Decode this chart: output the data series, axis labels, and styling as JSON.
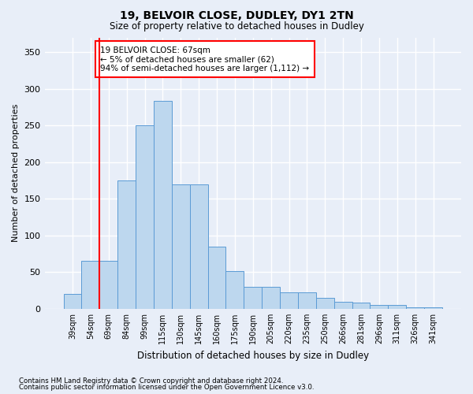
{
  "title1": "19, BELVOIR CLOSE, DUDLEY, DY1 2TN",
  "title2": "Size of property relative to detached houses in Dudley",
  "xlabel": "Distribution of detached houses by size in Dudley",
  "ylabel": "Number of detached properties",
  "categories": [
    "39sqm",
    "54sqm",
    "69sqm",
    "84sqm",
    "99sqm",
    "115sqm",
    "130sqm",
    "145sqm",
    "160sqm",
    "175sqm",
    "190sqm",
    "205sqm",
    "220sqm",
    "235sqm",
    "250sqm",
    "266sqm",
    "281sqm",
    "296sqm",
    "311sqm",
    "326sqm",
    "341sqm"
  ],
  "values": [
    20,
    65,
    65,
    175,
    250,
    283,
    170,
    170,
    85,
    52,
    30,
    30,
    22,
    22,
    15,
    10,
    8,
    5,
    5,
    2,
    2
  ],
  "bar_color": "#bdd7ee",
  "bar_edge_color": "#5b9bd5",
  "vline_color": "red",
  "vline_x": 1.5,
  "annotation_text": "19 BELVOIR CLOSE: 67sqm\n← 5% of detached houses are smaller (62)\n94% of semi-detached houses are larger (1,112) →",
  "annotation_box_color": "white",
  "annotation_box_edge_color": "red",
  "ylim": [
    0,
    370
  ],
  "yticks": [
    0,
    50,
    100,
    150,
    200,
    250,
    300,
    350
  ],
  "background_color": "#e8eef8",
  "grid_color": "white",
  "footnote1": "Contains HM Land Registry data © Crown copyright and database right 2024.",
  "footnote2": "Contains public sector information licensed under the Open Government Licence v3.0."
}
